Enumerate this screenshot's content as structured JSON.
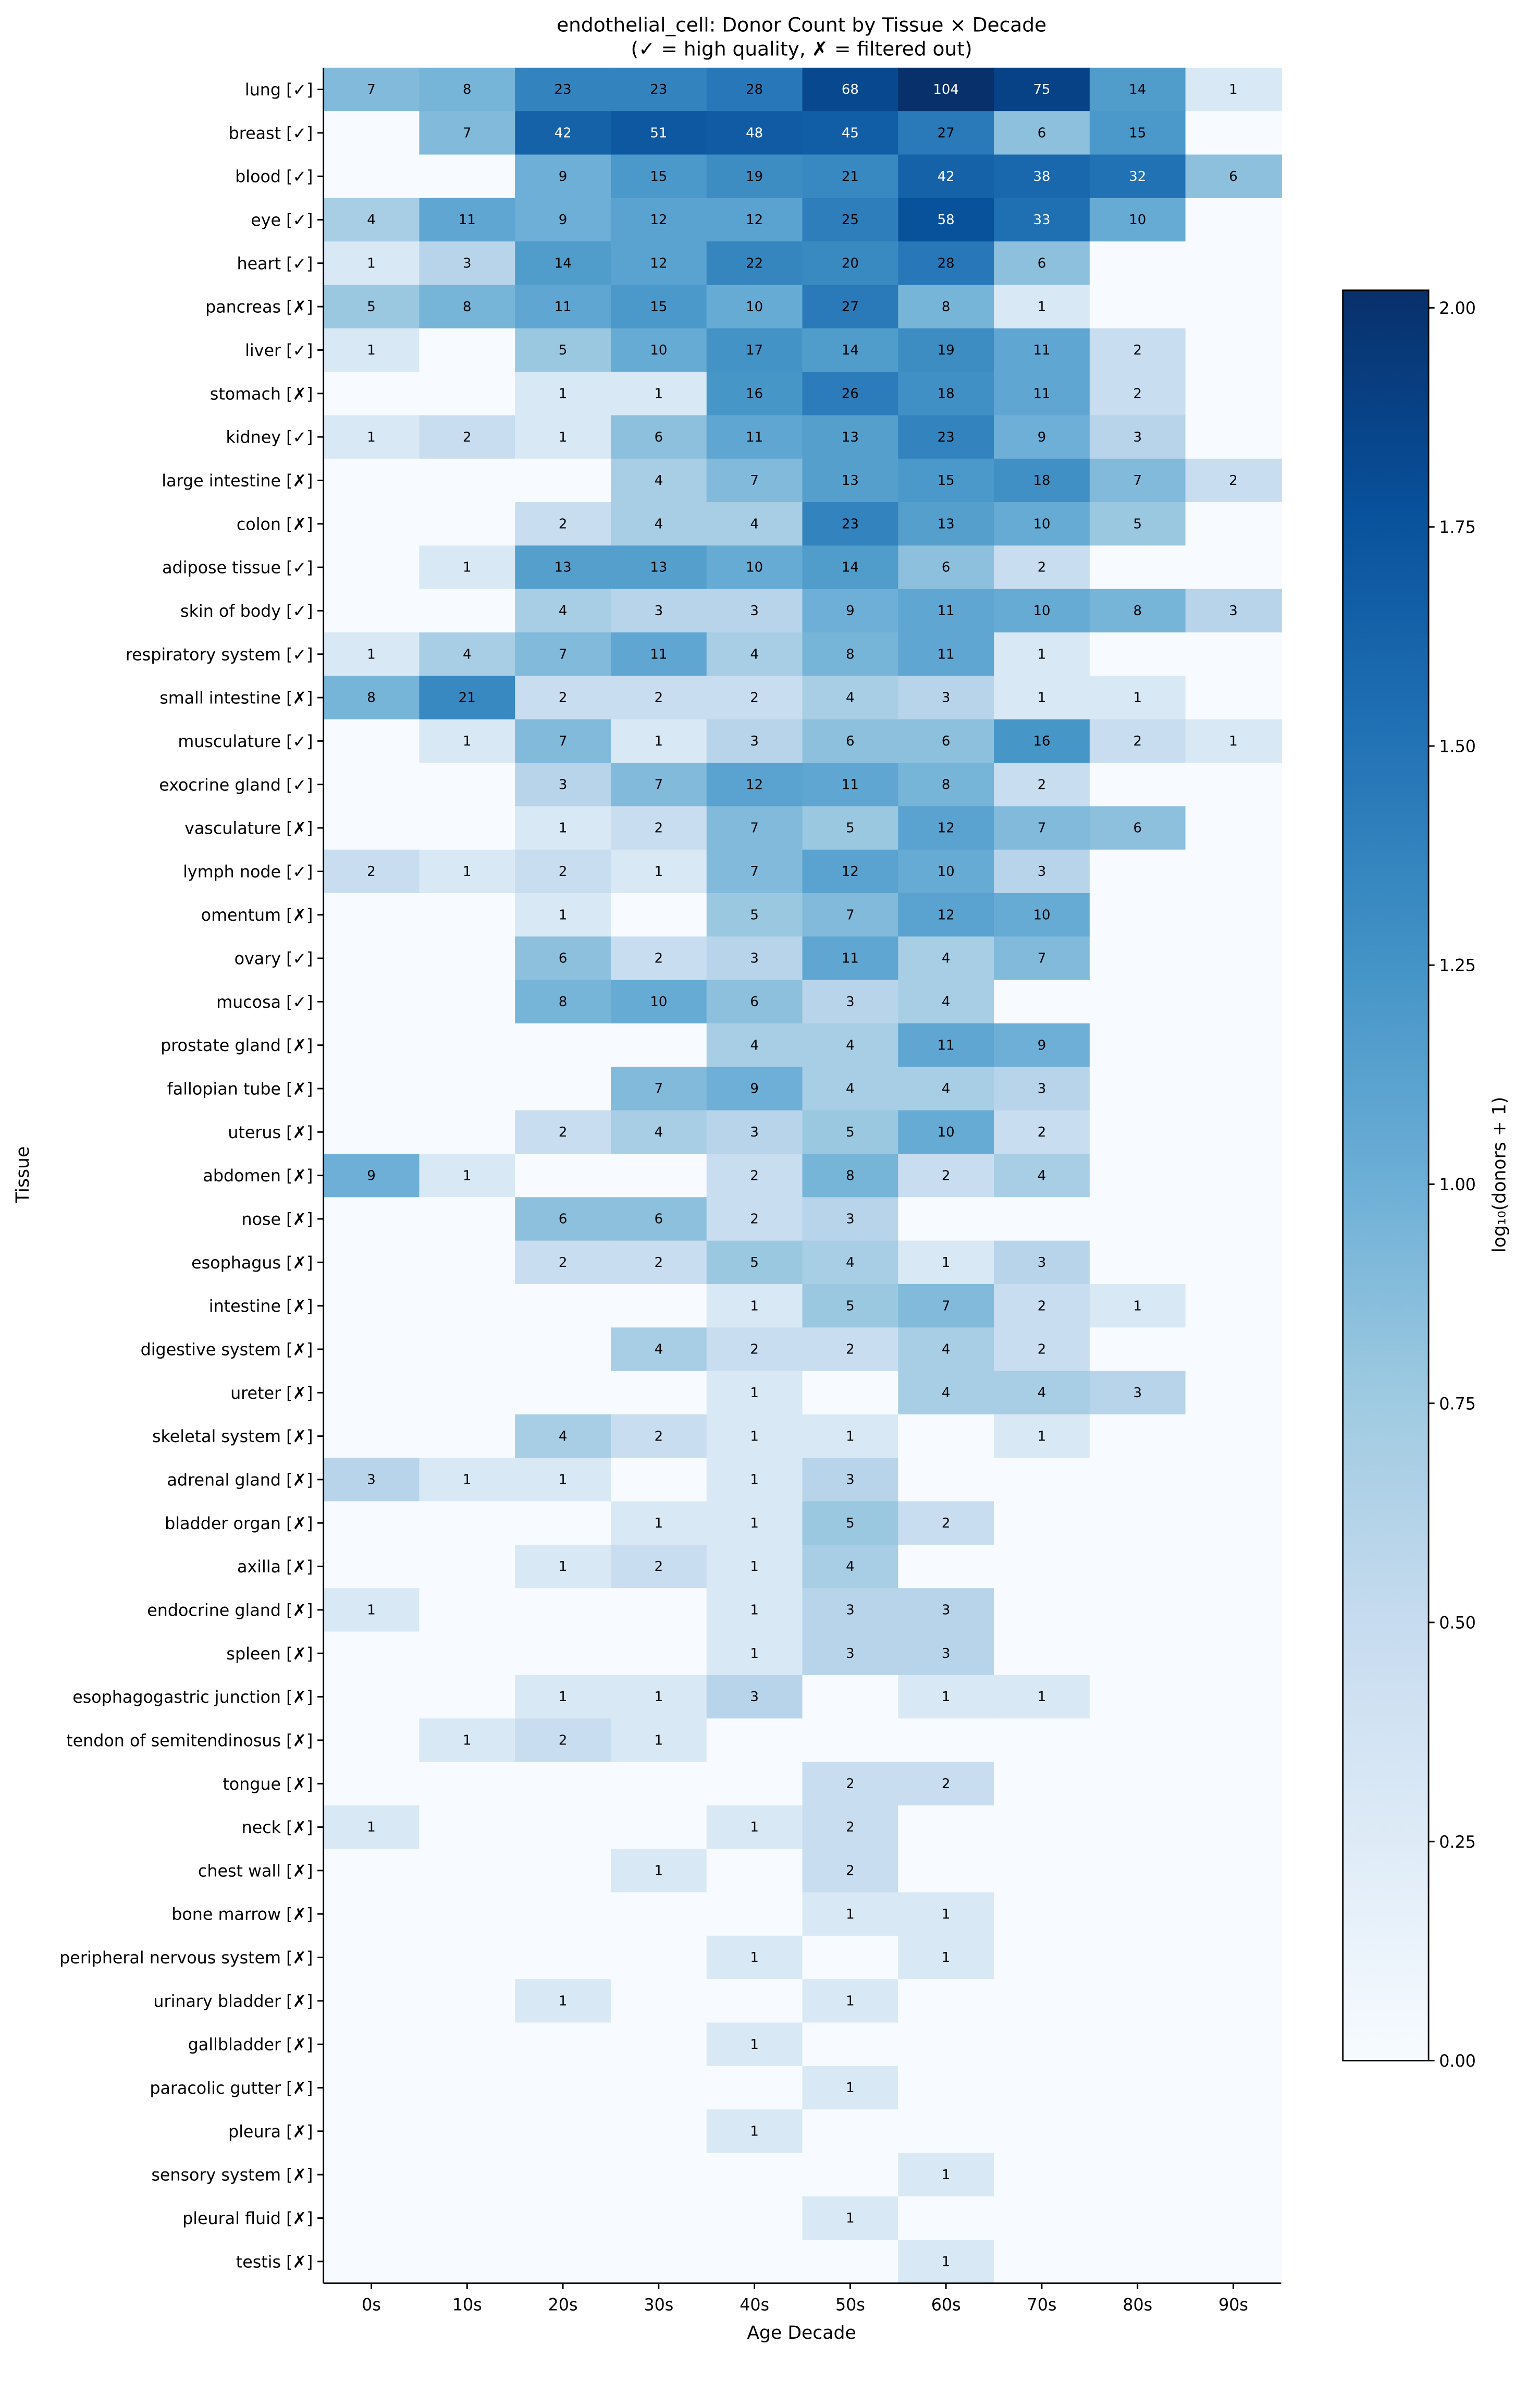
{
  "chart_data": {
    "type": "heatmap",
    "title": "endothelial_cell: Donor Count by Tissue × Decade",
    "subtitle": "(✓ = high quality, ✗ = filtered out)",
    "xlabel": "Age Decade",
    "ylabel": "Tissue",
    "colorbar_label": "log₁₀(donors + 1)",
    "colormap": "Blues",
    "colormap_stops": [
      "#f7fbff",
      "#deebf7",
      "#c6dbef",
      "#9ecae1",
      "#6baed6",
      "#4292c6",
      "#2171b5",
      "#08519c",
      "#08306b"
    ],
    "color_scale": "log10(value + 1)",
    "colorbar_range": [
      0,
      2.02
    ],
    "colorbar_ticks": [
      "0.00",
      "0.25",
      "0.50",
      "0.75",
      "1.00",
      "1.25",
      "1.50",
      "1.75",
      "2.00"
    ],
    "columns": [
      "0s",
      "10s",
      "20s",
      "30s",
      "40s",
      "50s",
      "60s",
      "70s",
      "80s",
      "90s"
    ],
    "rows": [
      {
        "label": "lung [✓]",
        "values": [
          7,
          8,
          23,
          23,
          28,
          68,
          104,
          75,
          14,
          1
        ]
      },
      {
        "label": "breast [✓]",
        "values": [
          null,
          7,
          42,
          51,
          48,
          45,
          27,
          6,
          15,
          null
        ]
      },
      {
        "label": "blood [✓]",
        "values": [
          null,
          null,
          9,
          15,
          19,
          21,
          42,
          38,
          32,
          6
        ]
      },
      {
        "label": "eye [✓]",
        "values": [
          4,
          11,
          9,
          12,
          12,
          25,
          58,
          33,
          10,
          null
        ]
      },
      {
        "label": "heart [✓]",
        "values": [
          1,
          3,
          14,
          12,
          22,
          20,
          28,
          6,
          null,
          null
        ]
      },
      {
        "label": "pancreas [✗]",
        "values": [
          5,
          8,
          11,
          15,
          10,
          27,
          8,
          1,
          null,
          null
        ]
      },
      {
        "label": "liver [✓]",
        "values": [
          1,
          null,
          5,
          10,
          17,
          14,
          19,
          11,
          2,
          null
        ]
      },
      {
        "label": "stomach [✗]",
        "values": [
          null,
          null,
          1,
          1,
          16,
          26,
          18,
          11,
          2,
          null
        ]
      },
      {
        "label": "kidney [✓]",
        "values": [
          1,
          2,
          1,
          6,
          11,
          13,
          23,
          9,
          3,
          null
        ]
      },
      {
        "label": "large intestine [✗]",
        "values": [
          null,
          null,
          null,
          4,
          7,
          13,
          15,
          18,
          7,
          2
        ]
      },
      {
        "label": "colon [✗]",
        "values": [
          null,
          null,
          2,
          4,
          4,
          23,
          13,
          10,
          5,
          null
        ]
      },
      {
        "label": "adipose tissue [✓]",
        "values": [
          null,
          1,
          13,
          13,
          10,
          14,
          6,
          2,
          null,
          null
        ]
      },
      {
        "label": "skin of body [✓]",
        "values": [
          null,
          null,
          4,
          3,
          3,
          9,
          11,
          10,
          8,
          3
        ]
      },
      {
        "label": "respiratory system [✓]",
        "values": [
          1,
          4,
          7,
          11,
          4,
          8,
          11,
          1,
          null,
          null
        ]
      },
      {
        "label": "small intestine [✗]",
        "values": [
          8,
          21,
          2,
          2,
          2,
          4,
          3,
          1,
          1,
          null
        ]
      },
      {
        "label": "musculature [✓]",
        "values": [
          null,
          1,
          7,
          1,
          3,
          6,
          6,
          16,
          2,
          1
        ]
      },
      {
        "label": "exocrine gland [✓]",
        "values": [
          null,
          null,
          3,
          7,
          12,
          11,
          8,
          2,
          null,
          null
        ]
      },
      {
        "label": "vasculature [✗]",
        "values": [
          null,
          null,
          1,
          2,
          7,
          5,
          12,
          7,
          6,
          null
        ]
      },
      {
        "label": "lymph node [✓]",
        "values": [
          2,
          1,
          2,
          1,
          7,
          12,
          10,
          3,
          null,
          null
        ]
      },
      {
        "label": "omentum [✗]",
        "values": [
          null,
          null,
          1,
          null,
          5,
          7,
          12,
          10,
          null,
          null
        ]
      },
      {
        "label": "ovary [✓]",
        "values": [
          null,
          null,
          6,
          2,
          3,
          11,
          4,
          7,
          null,
          null
        ]
      },
      {
        "label": "mucosa [✓]",
        "values": [
          null,
          null,
          8,
          10,
          6,
          3,
          4,
          null,
          null,
          null
        ]
      },
      {
        "label": "prostate gland [✗]",
        "values": [
          null,
          null,
          null,
          null,
          4,
          4,
          11,
          9,
          null,
          null
        ]
      },
      {
        "label": "fallopian tube [✗]",
        "values": [
          null,
          null,
          null,
          7,
          9,
          4,
          4,
          3,
          null,
          null
        ]
      },
      {
        "label": "uterus [✗]",
        "values": [
          null,
          null,
          2,
          4,
          3,
          5,
          10,
          2,
          null,
          null
        ]
      },
      {
        "label": "abdomen [✗]",
        "values": [
          9,
          1,
          null,
          null,
          2,
          8,
          2,
          4,
          null,
          null
        ]
      },
      {
        "label": "nose [✗]",
        "values": [
          null,
          null,
          6,
          6,
          2,
          3,
          null,
          null,
          null,
          null
        ]
      },
      {
        "label": "esophagus [✗]",
        "values": [
          null,
          null,
          2,
          2,
          5,
          4,
          1,
          3,
          null,
          null
        ]
      },
      {
        "label": "intestine [✗]",
        "values": [
          null,
          null,
          null,
          null,
          1,
          5,
          7,
          2,
          1,
          null
        ]
      },
      {
        "label": "digestive system [✗]",
        "values": [
          null,
          null,
          null,
          4,
          2,
          2,
          4,
          2,
          null,
          null
        ]
      },
      {
        "label": "ureter [✗]",
        "values": [
          null,
          null,
          null,
          null,
          1,
          null,
          4,
          4,
          3,
          null
        ]
      },
      {
        "label": "skeletal system [✗]",
        "values": [
          null,
          null,
          4,
          2,
          1,
          1,
          null,
          1,
          null,
          null
        ]
      },
      {
        "label": "adrenal gland [✗]",
        "values": [
          3,
          1,
          1,
          null,
          1,
          3,
          null,
          null,
          null,
          null
        ]
      },
      {
        "label": "bladder organ [✗]",
        "values": [
          null,
          null,
          null,
          1,
          1,
          5,
          2,
          null,
          null,
          null
        ]
      },
      {
        "label": "axilla [✗]",
        "values": [
          null,
          null,
          1,
          2,
          1,
          4,
          null,
          null,
          null,
          null
        ]
      },
      {
        "label": "endocrine gland [✗]",
        "values": [
          1,
          null,
          null,
          null,
          1,
          3,
          3,
          null,
          null,
          null
        ]
      },
      {
        "label": "spleen [✗]",
        "values": [
          null,
          null,
          null,
          null,
          1,
          3,
          3,
          null,
          null,
          null
        ]
      },
      {
        "label": "esophagogastric junction [✗]",
        "values": [
          null,
          null,
          1,
          1,
          3,
          null,
          1,
          1,
          null,
          null
        ]
      },
      {
        "label": "tendon of semitendinosus [✗]",
        "values": [
          null,
          1,
          2,
          1,
          null,
          null,
          null,
          null,
          null,
          null
        ]
      },
      {
        "label": "tongue [✗]",
        "values": [
          null,
          null,
          null,
          null,
          null,
          2,
          2,
          null,
          null,
          null
        ]
      },
      {
        "label": "neck [✗]",
        "values": [
          1,
          null,
          null,
          null,
          1,
          2,
          null,
          null,
          null,
          null
        ]
      },
      {
        "label": "chest wall [✗]",
        "values": [
          null,
          null,
          null,
          1,
          null,
          2,
          null,
          null,
          null,
          null
        ]
      },
      {
        "label": "bone marrow [✗]",
        "values": [
          null,
          null,
          null,
          null,
          null,
          1,
          1,
          null,
          null,
          null
        ]
      },
      {
        "label": "peripheral nervous system [✗]",
        "values": [
          null,
          null,
          null,
          null,
          1,
          null,
          1,
          null,
          null,
          null
        ]
      },
      {
        "label": "urinary bladder [✗]",
        "values": [
          null,
          null,
          1,
          null,
          null,
          1,
          null,
          null,
          null,
          null
        ]
      },
      {
        "label": "gallbladder [✗]",
        "values": [
          null,
          null,
          null,
          null,
          1,
          null,
          null,
          null,
          null,
          null
        ]
      },
      {
        "label": "paracolic gutter [✗]",
        "values": [
          null,
          null,
          null,
          null,
          null,
          1,
          null,
          null,
          null,
          null
        ]
      },
      {
        "label": "pleura [✗]",
        "values": [
          null,
          null,
          null,
          null,
          1,
          null,
          null,
          null,
          null,
          null
        ]
      },
      {
        "label": "sensory system [✗]",
        "values": [
          null,
          null,
          null,
          null,
          null,
          null,
          1,
          null,
          null,
          null
        ]
      },
      {
        "label": "pleural fluid [✗]",
        "values": [
          null,
          null,
          null,
          null,
          null,
          1,
          null,
          null,
          null,
          null
        ]
      },
      {
        "label": "testis [✗]",
        "values": [
          null,
          null,
          null,
          null,
          null,
          null,
          1,
          null,
          null,
          null
        ]
      }
    ]
  }
}
